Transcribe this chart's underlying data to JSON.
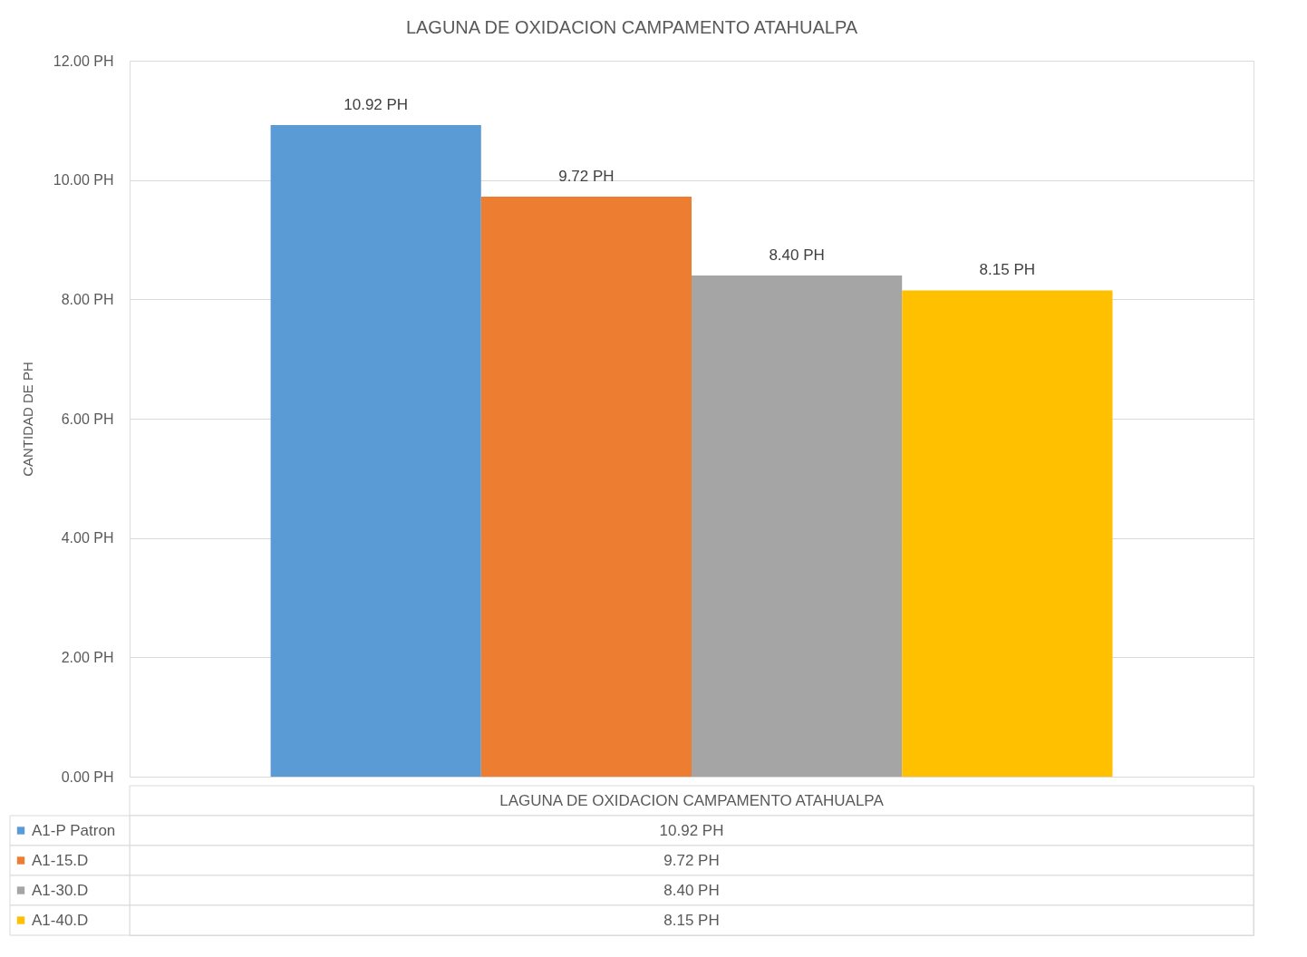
{
  "chart_data": {
    "type": "bar",
    "title": "LAGUNA DE OXIDACION CAMPAMENTO ATAHUALPA",
    "ylabel": "CANTIDAD DE PH",
    "categories": [
      "LAGUNA DE OXIDACION CAMPAMENTO ATAHUALPA"
    ],
    "series": [
      {
        "name": "A1-P Patron",
        "color": "#5b9bd5",
        "values": [
          10.92
        ],
        "value_labels": [
          "10.92 PH"
        ]
      },
      {
        "name": "A1-15.D",
        "color": "#ed7d31",
        "values": [
          9.72
        ],
        "value_labels": [
          "9.72 PH"
        ]
      },
      {
        "name": "A1-30.D",
        "color": "#a5a5a5",
        "values": [
          8.4
        ],
        "value_labels": [
          "8.40 PH"
        ]
      },
      {
        "name": "A1-40.D",
        "color": "#ffc000",
        "values": [
          8.15
        ],
        "value_labels": [
          "8.15 PH"
        ]
      }
    ],
    "ylim": [
      0,
      12
    ],
    "yticks": [
      {
        "value": 0,
        "label": "0.00 PH"
      },
      {
        "value": 2,
        "label": "2.00 PH"
      },
      {
        "value": 4,
        "label": "4.00 PH"
      },
      {
        "value": 6,
        "label": "6.00 PH"
      },
      {
        "value": 8,
        "label": "8.00 PH"
      },
      {
        "value": 10,
        "label": "10.00 PH"
      },
      {
        "value": 12,
        "label": "12.00 PH"
      }
    ],
    "grid": "y",
    "legend": "bottom"
  }
}
